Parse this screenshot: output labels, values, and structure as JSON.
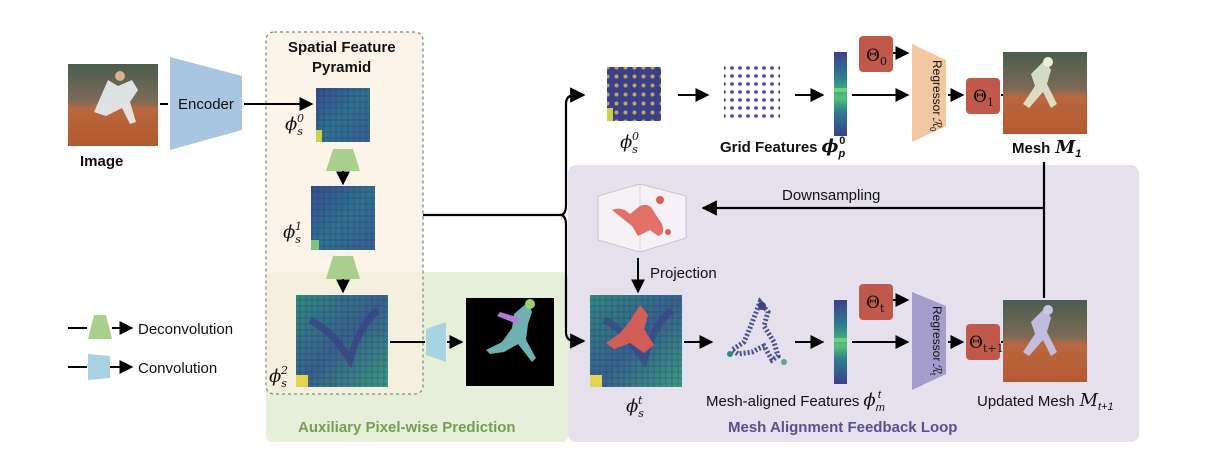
{
  "labels": {
    "image": "Image",
    "encoder": "Encoder",
    "pyramid_line1": "Spatial Feature",
    "pyramid_line2": "Pyramid",
    "grid_features": "Grid Features",
    "mesh_m1": "Mesh",
    "downsampling": "Downsampling",
    "projection": "Projection",
    "mesh_aligned": "Mesh-aligned Features",
    "updated_mesh": "Updated Mesh",
    "deconvolution": "Deconvolution",
    "convolution": "Convolution",
    "aux_title": "Auxiliary Pixel-wise Prediction",
    "loop_title": "Mesh Alignment Feedback Loop",
    "regressor0": "Regressor",
    "regressor_t": "Regressor"
  },
  "symbols": {
    "phi": "ϕ",
    "theta": "Θ",
    "phi_s0_sup": "0",
    "phi_s1_sup": "1",
    "phi_s2_sup": "2",
    "phi_st_sup": "t",
    "s_sub": "s",
    "p_sub": "p",
    "m_sub": "m",
    "theta0_sub": "0",
    "theta1_sub": "1",
    "thetat_sub": "t",
    "thetat1_sub": "t+1",
    "m1_sym": "M",
    "m1_sub": "1",
    "mt1_sub": "t+1",
    "r0_sym": "ℛ",
    "r0_sub": "0",
    "rt_sub": "t"
  },
  "colors": {
    "encoder": "#a8c6e2",
    "deconv": "#a9cf8c",
    "conv": "#a6d2e2",
    "regressor0": "#f3c7a0",
    "regressor_t": "#a49ccb",
    "theta_box": "#c1594a",
    "pyramid_bg": "#fbf0e0",
    "aux_bg": "#e6efd9",
    "loop_bg": "#e5e0ee",
    "feature_map": "#2f6e8e",
    "aux_title": "#7a9b52",
    "loop_title": "#5a4f8f"
  }
}
